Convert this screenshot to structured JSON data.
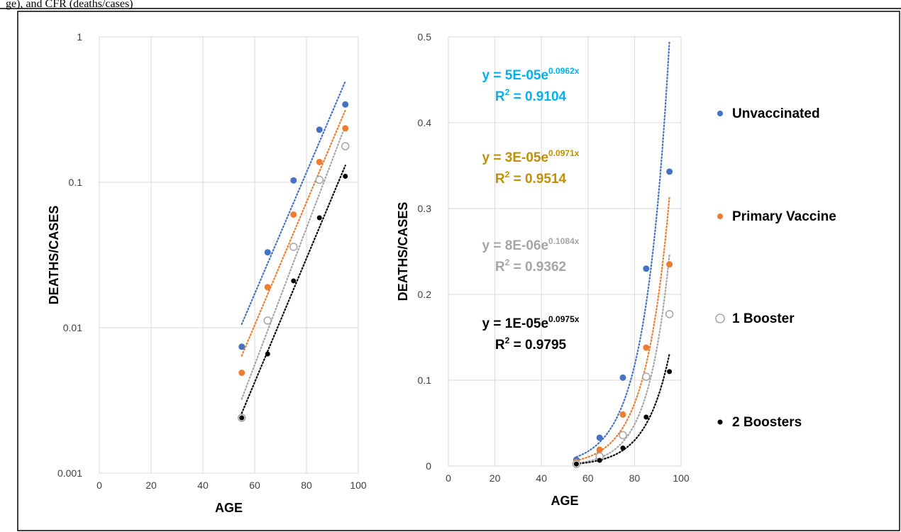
{
  "header_fragment": "ge), and CFR (deaths/cases)",
  "colors": {
    "unvaccinated": "#4472C4",
    "primary": "#ED7D31",
    "booster1_stroke": "#A5A5A5",
    "booster2": "#000000",
    "eq_unvax": "#00B0F0",
    "eq_primary": "#BF9000",
    "eq_booster1": "#A5A5A5",
    "eq_booster2": "#000000",
    "grid": "#D9D9D9"
  },
  "legend": [
    {
      "key": "unvaccinated",
      "label": "Unvaccinated",
      "marker": "filled-blue-icon"
    },
    {
      "key": "primary",
      "label": "Primary Vaccine",
      "marker": "filled-orange-icon"
    },
    {
      "key": "booster1",
      "label": "1 Booster",
      "marker": "hollow-circle-icon"
    },
    {
      "key": "booster2",
      "label": "2 Boosters",
      "marker": "small-black-dot-icon"
    }
  ],
  "equations": [
    {
      "key": "unvaccinated",
      "base": "y = 5E-05e",
      "exp": "0.0962x",
      "r2_base": "R",
      "r2_sup": "2",
      "r2_val": " = 0.9104"
    },
    {
      "key": "primary",
      "base": "y = 3E-05e",
      "exp": "0.0971x",
      "r2_base": "R",
      "r2_sup": "2",
      "r2_val": " = 0.9514"
    },
    {
      "key": "booster1",
      "base": "y = 8E-06e",
      "exp": "0.1084x",
      "r2_base": "R",
      "r2_sup": "2",
      "r2_val": " = 0.9362"
    },
    {
      "key": "booster2",
      "base": "y = 1E-05e",
      "exp": "0.0975x",
      "r2_base": "R",
      "r2_sup": "2",
      "r2_val": " = 0.9795"
    }
  ],
  "chart_data": [
    {
      "type": "scatter",
      "yscale": "log",
      "xlabel": "AGE",
      "ylabel": "DEATHS/CASES",
      "xlim": [
        0,
        100
      ],
      "ylim": [
        0.001,
        1
      ],
      "xticks": [
        "0",
        "20",
        "40",
        "60",
        "80",
        "100"
      ],
      "yticks": [
        "0.001",
        "0.01",
        "0.1",
        "1"
      ],
      "grid": "vertical",
      "trendline": "exponential, dotted",
      "series": [
        {
          "name": "Unvaccinated",
          "x": [
            55,
            65,
            75,
            85,
            95
          ],
          "y": [
            0.0074,
            0.033,
            0.103,
            0.23,
            0.343
          ]
        },
        {
          "name": "Primary Vaccine",
          "x": [
            55,
            65,
            75,
            85,
            95
          ],
          "y": [
            0.0049,
            0.019,
            0.06,
            0.138,
            0.235
          ]
        },
        {
          "name": "1 Booster",
          "x": [
            55,
            65,
            75,
            85,
            95
          ],
          "y": [
            0.0024,
            0.0112,
            0.036,
            0.104,
            0.177
          ]
        },
        {
          "name": "2 Boosters",
          "x": [
            55,
            65,
            75,
            85,
            95
          ],
          "y": [
            0.0024,
            0.0066,
            0.021,
            0.057,
            0.11
          ]
        }
      ]
    },
    {
      "type": "scatter",
      "yscale": "linear",
      "xlabel": "AGE",
      "ylabel": "DEATHS/CASES",
      "xlim": [
        0,
        100
      ],
      "ylim": [
        0,
        0.5
      ],
      "xticks": [
        "0",
        "20",
        "40",
        "60",
        "80",
        "100"
      ],
      "yticks": [
        "0",
        "0.1",
        "0.2",
        "0.3",
        "0.4",
        "0.5"
      ],
      "grid": "both",
      "trendline": "exponential, dotted",
      "series": [
        {
          "name": "Unvaccinated",
          "x": [
            55,
            65,
            75,
            85,
            95
          ],
          "y": [
            0.0074,
            0.033,
            0.103,
            0.23,
            0.343
          ]
        },
        {
          "name": "Primary Vaccine",
          "x": [
            55,
            65,
            75,
            85,
            95
          ],
          "y": [
            0.0049,
            0.019,
            0.06,
            0.138,
            0.235
          ]
        },
        {
          "name": "1 Booster",
          "x": [
            55,
            65,
            75,
            85,
            95
          ],
          "y": [
            0.0024,
            0.0112,
            0.036,
            0.104,
            0.177
          ]
        },
        {
          "name": "2 Boosters",
          "x": [
            55,
            65,
            75,
            85,
            95
          ],
          "y": [
            0.0024,
            0.0066,
            0.021,
            0.057,
            0.11
          ]
        }
      ]
    }
  ]
}
